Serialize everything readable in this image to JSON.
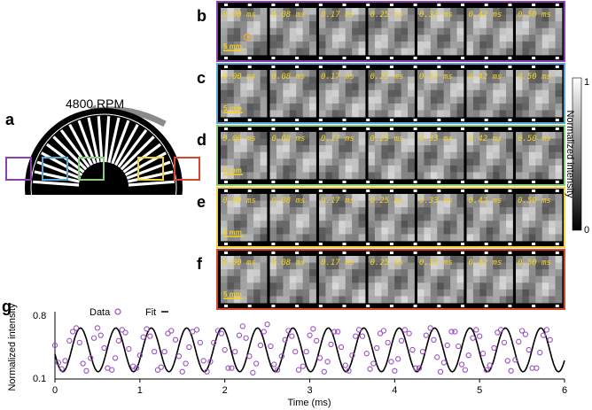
{
  "panels": {
    "a": "a",
    "b": "b",
    "c": "c",
    "d": "d",
    "e": "e",
    "f": "f",
    "g": "g"
  },
  "wheel": {
    "rpm_label": "4800 RPM"
  },
  "film": {
    "timestamps": [
      "0.00 ms",
      "0.08 ms",
      "0.17 ms",
      "0.25 ms",
      "0.33 ms",
      "0.42 ms",
      "0.50 ms"
    ],
    "scale_bar": "5 mm",
    "rows": [
      {
        "panel": "b",
        "border": "#8b3fb0"
      },
      {
        "panel": "c",
        "border": "#5aa6d6"
      },
      {
        "panel": "d",
        "border": "#86cc7a"
      },
      {
        "panel": "e",
        "border": "#f2d23c"
      },
      {
        "panel": "f",
        "border": "#d9452b"
      }
    ]
  },
  "colorbar": {
    "label": "Normalized intensity",
    "max": "1",
    "min": "0"
  },
  "chart_data": {
    "type": "scatter",
    "xlabel": "Time (ms)",
    "ylabel": "Normalized intensity",
    "xlim": [
      0,
      6
    ],
    "ylim": [
      0.1,
      0.8
    ],
    "xticks": [
      "0",
      "1",
      "2",
      "3",
      "4",
      "5",
      "6"
    ],
    "yticks": [
      "0.1",
      "0.8"
    ],
    "legend": [
      {
        "name": "Data",
        "marker": "circle",
        "color": "#9b4fc4"
      },
      {
        "name": "Fit",
        "marker": "line",
        "color": "#000000"
      }
    ],
    "fit": {
      "period_ms": 0.417,
      "mean": 0.42,
      "amplitude": 0.24
    },
    "series": [
      {
        "name": "Data",
        "x": [
          0.0,
          0.04,
          0.08,
          0.12,
          0.17,
          0.21,
          0.25,
          0.29,
          0.33,
          0.37,
          0.42,
          0.46,
          0.5,
          0.54,
          0.58,
          0.62,
          0.67,
          0.71,
          0.75,
          0.79,
          0.83,
          0.87,
          0.92,
          0.96,
          1.0,
          1.04,
          1.08,
          1.12,
          1.17,
          1.21,
          1.25,
          1.29,
          1.33,
          1.37,
          1.42,
          1.46,
          1.5,
          1.54,
          1.58,
          1.62,
          1.67,
          1.71,
          1.75,
          1.79,
          1.83,
          1.87,
          1.92,
          1.96,
          2.0,
          2.04,
          2.08,
          2.12,
          2.17,
          2.21,
          2.25,
          2.29,
          2.33,
          2.37,
          2.42,
          2.46,
          2.5,
          2.54,
          2.58,
          2.62,
          2.67,
          2.71,
          2.75,
          2.79,
          2.83,
          2.87,
          2.92,
          2.96,
          3.0,
          3.04,
          3.08,
          3.12,
          3.17,
          3.21,
          3.25,
          3.29,
          3.33,
          3.37,
          3.42,
          3.46,
          3.5,
          3.54,
          3.58,
          3.62,
          3.67,
          3.71,
          3.75,
          3.79,
          3.83,
          3.87,
          3.92,
          3.96,
          4.0,
          4.04,
          4.08,
          4.12,
          4.17,
          4.21,
          4.25,
          4.29,
          4.33,
          4.37,
          4.42,
          4.46,
          4.5,
          4.54,
          4.58,
          4.62,
          4.67,
          4.71,
          4.75,
          4.79,
          4.83,
          4.87,
          4.92,
          4.96,
          5.0,
          5.04,
          5.08,
          5.12,
          5.17,
          5.21,
          5.25,
          5.29,
          5.33,
          5.37,
          5.42,
          5.46,
          5.5,
          5.54,
          5.58,
          5.62,
          5.67,
          5.71,
          5.75,
          5.79,
          5.83
        ],
        "y": [
          0.47,
          0.28,
          0.21,
          0.3,
          0.52,
          0.62,
          0.66,
          0.5,
          0.27,
          0.19,
          0.33,
          0.55,
          0.66,
          0.58,
          0.44,
          0.22,
          0.2,
          0.33,
          0.52,
          0.64,
          0.61,
          0.43,
          0.24,
          0.22,
          0.36,
          0.56,
          0.65,
          0.57,
          0.4,
          0.2,
          0.23,
          0.4,
          0.6,
          0.63,
          0.53,
          0.35,
          0.18,
          0.27,
          0.45,
          0.62,
          0.64,
          0.5,
          0.3,
          0.18,
          0.29,
          0.5,
          0.63,
          0.6,
          0.42,
          0.22,
          0.22,
          0.4,
          0.58,
          0.68,
          0.55,
          0.35,
          0.17,
          0.27,
          0.47,
          0.62,
          0.7,
          0.46,
          0.26,
          0.2,
          0.35,
          0.53,
          0.63,
          0.57,
          0.4,
          0.2,
          0.24,
          0.4,
          0.58,
          0.65,
          0.52,
          0.33,
          0.18,
          0.29,
          0.48,
          0.62,
          0.62,
          0.45,
          0.25,
          0.19,
          0.36,
          0.57,
          0.64,
          0.57,
          0.38,
          0.21,
          0.27,
          0.44,
          0.6,
          0.63,
          0.5,
          0.29,
          0.19,
          0.32,
          0.52,
          0.64,
          0.6,
          0.42,
          0.22,
          0.22,
          0.4,
          0.58,
          0.66,
          0.53,
          0.34,
          0.18,
          0.28,
          0.47,
          0.62,
          0.62,
          0.46,
          0.26,
          0.2,
          0.36,
          0.55,
          0.64,
          0.57,
          0.38,
          0.2,
          0.25,
          0.44,
          0.61,
          0.64,
          0.5,
          0.3,
          0.19,
          0.31,
          0.51,
          0.63,
          0.59,
          0.42,
          0.22,
          0.22,
          0.39,
          0.58,
          0.64,
          0.53
        ]
      }
    ]
  }
}
